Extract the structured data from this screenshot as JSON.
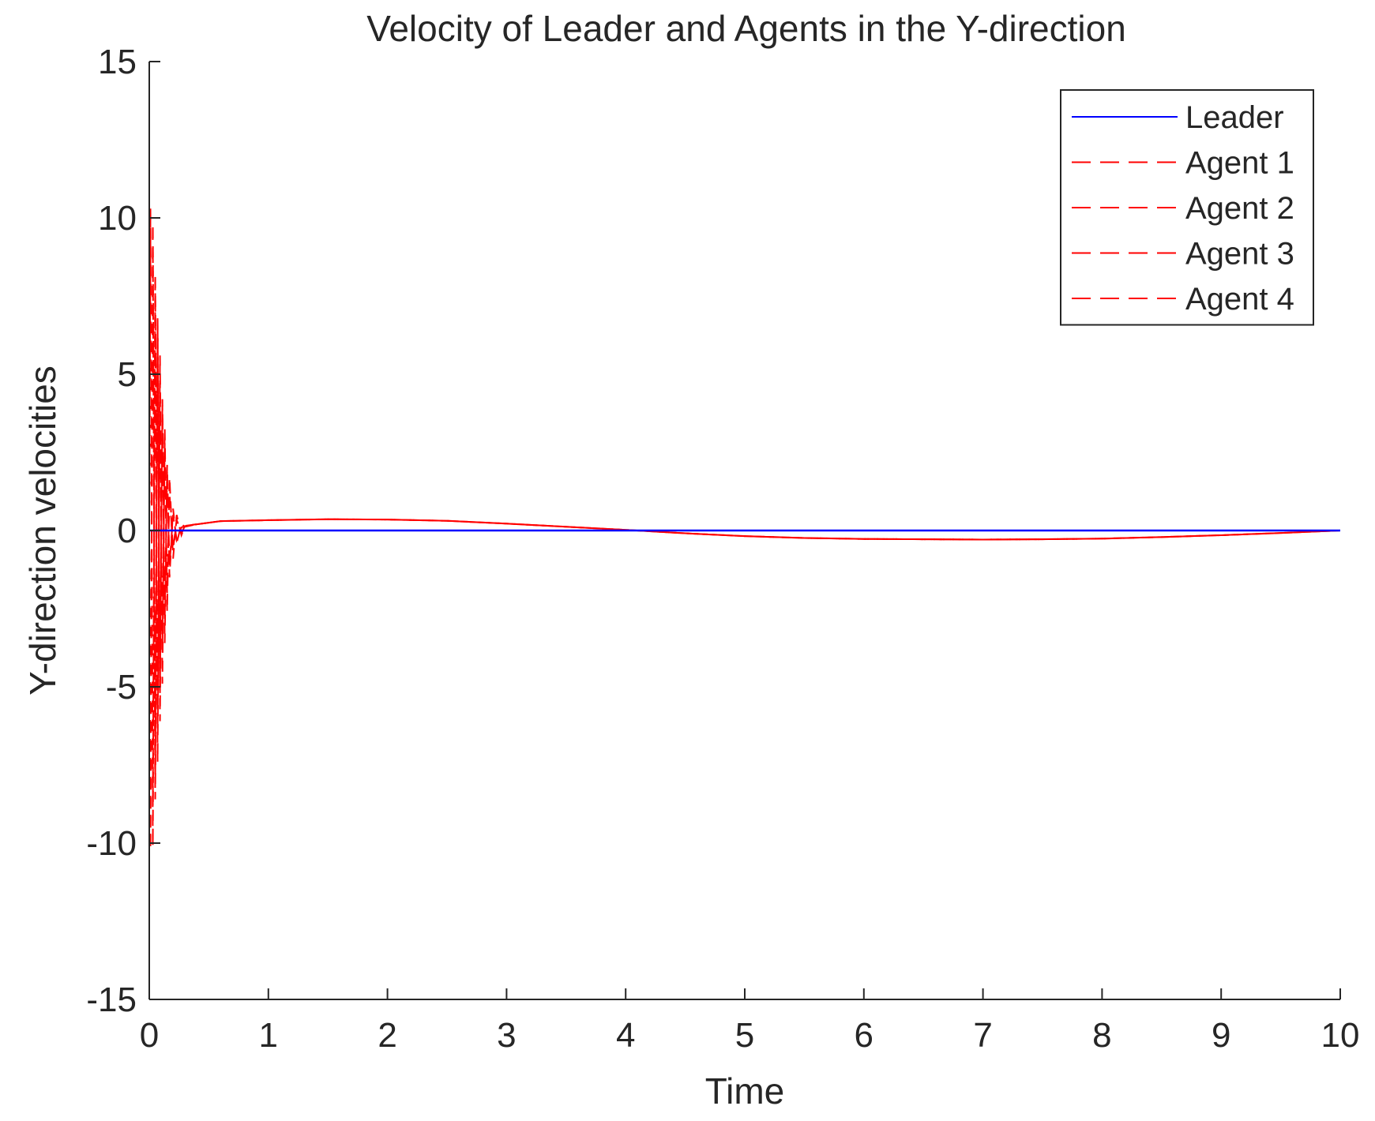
{
  "chart_data": {
    "type": "line",
    "title": "Velocity of Leader and Agents in the Y-direction",
    "xlabel": "Time",
    "ylabel": "Y-direction velocities",
    "xlim": [
      0,
      10
    ],
    "ylim": [
      -15,
      15
    ],
    "xticks": [
      "0",
      "1",
      "2",
      "3",
      "4",
      "5",
      "6",
      "7",
      "8",
      "9",
      "10"
    ],
    "yticks": [
      "-15",
      "-10",
      "-5",
      "0",
      "5",
      "10",
      "15"
    ],
    "grid": false,
    "legend_position": "top-right",
    "series": [
      {
        "name": "Leader",
        "style": "solid",
        "color": "#0000ff",
        "x": [
          0,
          10
        ],
        "y": [
          0,
          0
        ]
      },
      {
        "name": "Agent 1",
        "style": "dashed",
        "color": "#ff0000",
        "x": [
          0,
          0.01,
          0.03,
          0.05,
          0.07,
          0.09,
          0.11,
          0.13,
          0.15,
          0.17,
          0.2,
          0.23,
          0.27,
          0.3,
          0.4,
          0.6,
          1,
          1.5,
          2,
          2.5,
          3,
          3.5,
          4,
          4.5,
          5,
          5.5,
          6,
          6.5,
          7,
          7.5,
          8,
          8.5,
          9,
          9.5,
          10
        ],
        "y": [
          0,
          10.3,
          -10.1,
          8.2,
          -7.4,
          5.6,
          -4.9,
          3.3,
          -2.6,
          1.7,
          -0.9,
          0.5,
          -0.15,
          0.15,
          0.2,
          0.3,
          0.33,
          0.36,
          0.35,
          0.31,
          0.22,
          0.12,
          0.02,
          -0.09,
          -0.18,
          -0.24,
          -0.27,
          -0.28,
          -0.29,
          -0.28,
          -0.26,
          -0.21,
          -0.15,
          -0.08,
          0.0
        ]
      },
      {
        "name": "Agent 2",
        "style": "dashed",
        "color": "#ff0000",
        "x": [
          0,
          0.01,
          0.03,
          0.05,
          0.07,
          0.09,
          0.11,
          0.13,
          0.15,
          0.17,
          0.2,
          0.23,
          0.27,
          0.3,
          0.4,
          0.6,
          1,
          1.5,
          2,
          2.5,
          3,
          3.5,
          4,
          4.5,
          5,
          5.5,
          6,
          6.5,
          7,
          7.5,
          8,
          8.5,
          9,
          9.5,
          10
        ],
        "y": [
          0,
          -10.2,
          9.8,
          -8.6,
          6.9,
          -6.1,
          4.2,
          -3.6,
          2.1,
          -1.5,
          0.7,
          -0.4,
          0.2,
          0.12,
          0.2,
          0.3,
          0.33,
          0.36,
          0.35,
          0.31,
          0.22,
          0.12,
          0.02,
          -0.09,
          -0.18,
          -0.24,
          -0.27,
          -0.28,
          -0.29,
          -0.28,
          -0.26,
          -0.21,
          -0.15,
          -0.08,
          0.0
        ]
      },
      {
        "name": "Agent 3",
        "style": "dashed",
        "color": "#ff0000",
        "x": [
          0,
          0.01,
          0.03,
          0.05,
          0.07,
          0.09,
          0.11,
          0.13,
          0.15,
          0.17,
          0.2,
          0.23,
          0.27,
          0.3,
          0.4,
          0.6,
          1,
          1.5,
          2,
          2.5,
          3,
          3.5,
          4,
          4.5,
          5,
          5.5,
          6,
          6.5,
          7,
          7.5,
          8,
          8.5,
          9,
          9.5,
          10
        ],
        "y": [
          0,
          9.4,
          -8.8,
          7.6,
          -6.4,
          4.8,
          -3.9,
          2.8,
          -2.0,
          1.2,
          -0.6,
          0.35,
          -0.1,
          0.16,
          0.2,
          0.3,
          0.33,
          0.36,
          0.35,
          0.31,
          0.22,
          0.12,
          0.02,
          -0.09,
          -0.18,
          -0.24,
          -0.27,
          -0.28,
          -0.29,
          -0.28,
          -0.26,
          -0.21,
          -0.15,
          -0.08,
          0.0
        ]
      },
      {
        "name": "Agent 4",
        "style": "dashed",
        "color": "#ff0000",
        "x": [
          0,
          0.01,
          0.03,
          0.05,
          0.07,
          0.09,
          0.11,
          0.13,
          0.15,
          0.17,
          0.2,
          0.23,
          0.27,
          0.3,
          0.4,
          0.6,
          1,
          1.5,
          2,
          2.5,
          3,
          3.5,
          4,
          4.5,
          5,
          5.5,
          6,
          6.5,
          7,
          7.5,
          8,
          8.5,
          9,
          9.5,
          10
        ],
        "y": [
          0,
          -9.6,
          9.1,
          -7.9,
          6.6,
          -5.2,
          4.0,
          -2.9,
          1.9,
          -1.1,
          0.5,
          -0.3,
          0.1,
          0.14,
          0.2,
          0.3,
          0.33,
          0.36,
          0.35,
          0.31,
          0.22,
          0.12,
          0.02,
          -0.09,
          -0.18,
          -0.24,
          -0.27,
          -0.28,
          -0.29,
          -0.28,
          -0.26,
          -0.21,
          -0.15,
          -0.08,
          0.0
        ]
      }
    ]
  }
}
